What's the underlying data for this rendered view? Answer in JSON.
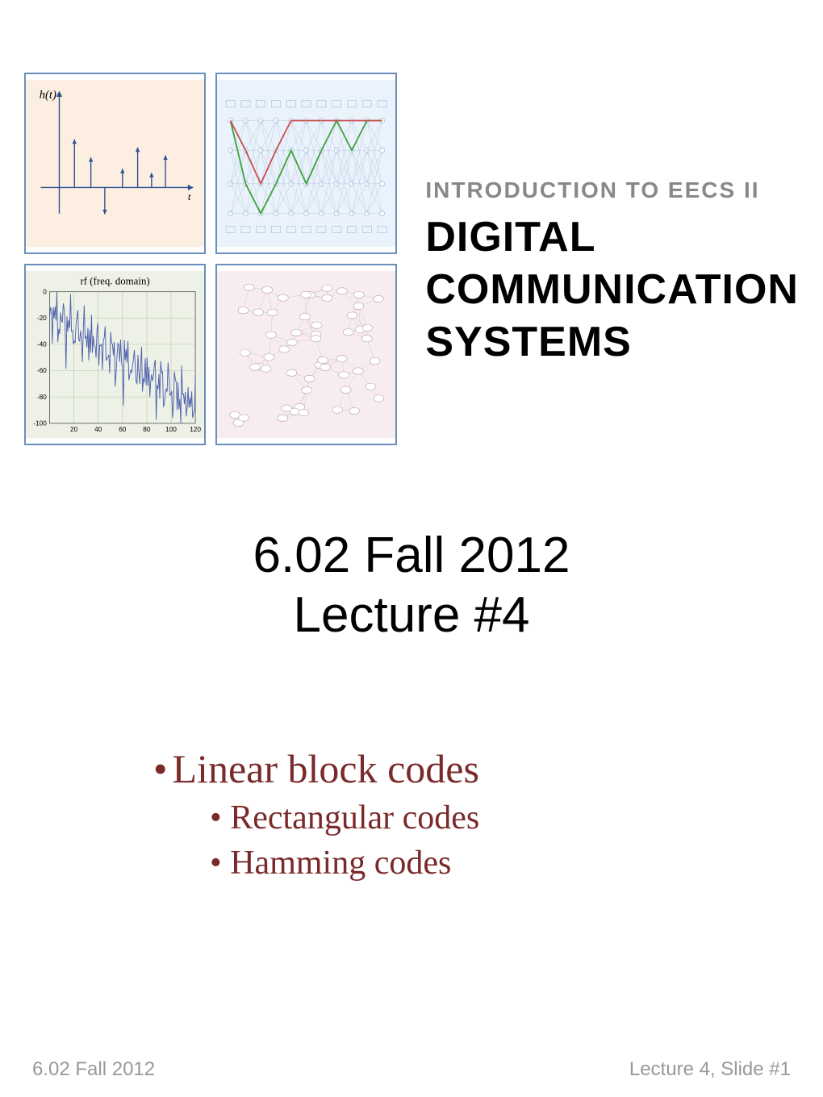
{
  "header": {
    "intro_line": "INTRODUCTION TO EECS II",
    "main_title_l1": "DIGITAL",
    "main_title_l2": "COMMUNICATION",
    "main_title_l3": "SYSTEMS"
  },
  "thumbnails": {
    "tl": {
      "border_color": "#6a8fbf",
      "bg_color": "#fcefe2",
      "label": "h(t)",
      "axis_label": "t",
      "axis_color": "#2f4f8f",
      "arrow_color": "#2f4f8f",
      "impulse_positions": [
        0.12,
        0.25,
        0.36,
        0.5,
        0.62,
        0.73,
        0.84
      ],
      "impulse_heights": [
        0.72,
        0.45,
        -0.4,
        0.28,
        0.6,
        0.22,
        0.48
      ]
    },
    "tr": {
      "border_color": "#6a8fbf",
      "bg_color": "#eaf2fb",
      "grid_color": "#9fb8d6",
      "trace_colors": [
        "#c94f4f",
        "#3fa33f",
        "#5b7bb5"
      ],
      "n_stages": 11
    },
    "bl": {
      "border_color": "#6a8fbf",
      "bg_color": "#eef2e6",
      "title": "rf (freq. domain)",
      "grid_color": "#b8c4a8",
      "trace_color": "#4a5fb0",
      "xlim": [
        0,
        120
      ],
      "ylim": [
        -100,
        0
      ],
      "ytick_step": 20,
      "xtick_step": 20
    },
    "br": {
      "border_color": "#6a8fbf",
      "bg_color": "#f7ecef",
      "node_color": "#b09aa8",
      "edge_color": "#b09aa8",
      "n_nodes": 55
    }
  },
  "center": {
    "line1": "6.02 Fall 2012",
    "line2": "Lecture #4"
  },
  "bullets": {
    "main": "Linear block codes",
    "subs": [
      "Rectangular codes",
      "Hamming codes"
    ],
    "color": "#7a2a2a"
  },
  "footer": {
    "left": "6.02 Fall 2012",
    "right": "Lecture 4, Slide #1",
    "color": "#999999"
  }
}
